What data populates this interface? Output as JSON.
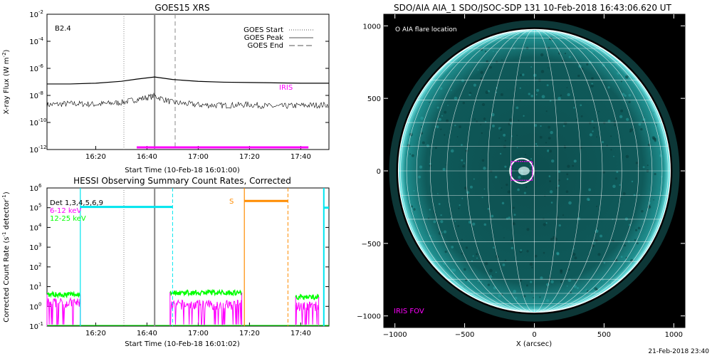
{
  "colors": {
    "black": "#000000",
    "magenta": "#ff00ff",
    "cyan": "#00e5ee",
    "green": "#00ff00",
    "orange": "#ff8c00",
    "gray": "#999999",
    "disk": "#0b4a4a"
  },
  "chart_data": [
    {
      "id": "goes",
      "type": "line",
      "title": "GOES15 XRS",
      "xlabel": "Start Time (10-Feb-18 16:01:00)",
      "ylabel": "X-ray Flux (W m",
      "ylabel_sup": "-2",
      "ylabel_tail": ")",
      "xlim_minutes": [
        16.0,
        16.5,
        17.0,
        17.5,
        17.8333
      ],
      "x_range": [
        "16:01",
        "17:51"
      ],
      "xtick_labels": [
        "16:20",
        "16:40",
        "17:00",
        "17:20",
        "17:40"
      ],
      "xticks": [
        "16:20",
        "16:40",
        "17:00",
        "17:20",
        "17:40"
      ],
      "y_scale": "log",
      "ylim_exp": [
        -12,
        -2
      ],
      "ytick_exps": [
        -12,
        -10,
        -8,
        -6,
        -4,
        -2
      ],
      "ytick_labels": [
        "10",
        "10",
        "10",
        "10",
        "10",
        "10"
      ],
      "ytick_sups": [
        "-12",
        "-10",
        "-8",
        "-6",
        "-4",
        "-2"
      ],
      "class_label": "B2.4",
      "legend": [
        {
          "label": "GOES Start",
          "style": "dotted"
        },
        {
          "label": "GOES Peak",
          "style": "solid"
        },
        {
          "label": "GOES End",
          "style": "dashed"
        }
      ],
      "goes_times": {
        "start": "16:31",
        "peak": "16:43",
        "end": "16:51"
      },
      "series": [
        {
          "name": "long",
          "color": "#000000",
          "points": [
            [
              "16:01",
              7e-08
            ],
            [
              "16:10",
              7e-08
            ],
            [
              "16:20",
              8e-08
            ],
            [
              "16:30",
              1.1e-07
            ],
            [
              "16:36",
              1.6e-07
            ],
            [
              "16:43",
              2.3e-07
            ],
            [
              "16:50",
              1.5e-07
            ],
            [
              "17:00",
              1.1e-07
            ],
            [
              "17:10",
              9.5e-08
            ],
            [
              "17:20",
              9e-08
            ],
            [
              "17:30",
              8.5e-08
            ],
            [
              "17:40",
              8e-08
            ],
            [
              "17:51",
              8e-08
            ]
          ]
        },
        {
          "name": "short",
          "color": "#000000",
          "points": [
            [
              "16:01",
              2e-09
            ],
            [
              "16:10",
              2.5e-09
            ],
            [
              "16:20",
              2.2e-09
            ],
            [
              "16:30",
              3e-09
            ],
            [
              "16:36",
              5e-09
            ],
            [
              "16:43",
              9e-09
            ],
            [
              "16:50",
              3e-09
            ],
            [
              "17:00",
              2e-09
            ],
            [
              "17:10",
              1.8e-09
            ],
            [
              "17:20",
              2.1e-09
            ],
            [
              "17:30",
              1.5e-09
            ],
            [
              "17:40",
              1.8e-09
            ],
            [
              "17:51",
              2e-09
            ]
          ]
        }
      ],
      "iris": {
        "label": "IRIS",
        "start": "16:36",
        "end": "17:43"
      }
    },
    {
      "id": "hessi",
      "type": "line",
      "title": "HESSI Observing Summary Count Rates, Corrected",
      "xlabel": "Start Time (10-Feb-18 16:01:02)",
      "ylabel": "Corrected Count Rate (s",
      "ylabel_sup": "-1",
      "ylabel_mid": " detector",
      "ylabel_sup2": "-1",
      "ylabel_tail": ")",
      "x_range": [
        "16:01",
        "17:51"
      ],
      "xtick_labels": [
        "16:20",
        "16:40",
        "17:00",
        "17:20",
        "17:40"
      ],
      "xticks": [
        "16:20",
        "16:40",
        "17:00",
        "17:20",
        "17:40"
      ],
      "y_scale": "log",
      "ylim_exp": [
        -1,
        6
      ],
      "ytick_exps": [
        -1,
        0,
        1,
        2,
        3,
        4,
        5,
        6
      ],
      "ytick_labels": [
        "10",
        "10",
        "10",
        "10",
        "10",
        "10",
        "10",
        "10"
      ],
      "ytick_sups": [
        "-1",
        "0",
        "1",
        "2",
        "3",
        "4",
        "5",
        "6"
      ],
      "legend": [
        {
          "label": "Det 1,3,4,5,6,9",
          "color": "#000000"
        },
        {
          "label": "6-12 keV",
          "color": "#ff00ff"
        },
        {
          "label": "12-25 keV",
          "color": "#00ff00"
        }
      ],
      "segments": [
        {
          "start": "16:01",
          "end": "16:14",
          "level_6_12": 1.5,
          "level_12_25": 4
        },
        {
          "start": "16:49",
          "end": "17:17",
          "level_6_12": 1.2,
          "level_12_25": 5
        },
        {
          "start": "17:38",
          "end": "17:47",
          "level_6_12": 1.0,
          "level_12_25": 3
        }
      ],
      "cyan_bar": {
        "start": "16:14",
        "end": "16:50",
        "value": 110000.0
      },
      "orange_bar": {
        "start": "17:18",
        "end": "17:35",
        "value": 220000.0,
        "label": "S"
      },
      "cyan_end_bar": {
        "start": "17:49",
        "end": "17:51",
        "value": 100000.0
      },
      "markers": {
        "cyan_solid": "16:14",
        "cyan_dashed": "16:50",
        "orange_solid": "17:18",
        "orange_dashed": "17:35",
        "cyan_solid_2": "17:49",
        "goes_start": "16:31",
        "goes_peak": "16:43"
      }
    },
    {
      "id": "aia",
      "type": "scatter",
      "title": "SDO/AIA AIA_1 SDO/JSOC-SDP 131 10-Feb-2018 16:43:06.620 UT",
      "xlabel": "X (arcsec)",
      "ylabel": "",
      "xlim": [
        -1080,
        1080
      ],
      "ylim": [
        -1080,
        1080
      ],
      "xticks": [
        -1000,
        -500,
        0,
        500,
        1000
      ],
      "yticks": [
        -1000,
        -500,
        0,
        500,
        1000
      ],
      "xtick_labels": [
        "−1000",
        "−500",
        "0",
        "500",
        "1000"
      ],
      "ytick_labels": [
        "−1000",
        "−500",
        "0",
        "500",
        "1000"
      ],
      "solar_radius": 975,
      "legend_label": "O AIA flare location",
      "iris_fov_label": "IRIS FOV",
      "flare": {
        "x": -90,
        "y": 0,
        "r": 85
      },
      "iris_fov": {
        "x": -90,
        "y": 0,
        "w": 150,
        "h": 130
      }
    }
  ],
  "footer": {
    "timestamp": "21-Feb-2018 23:40"
  }
}
